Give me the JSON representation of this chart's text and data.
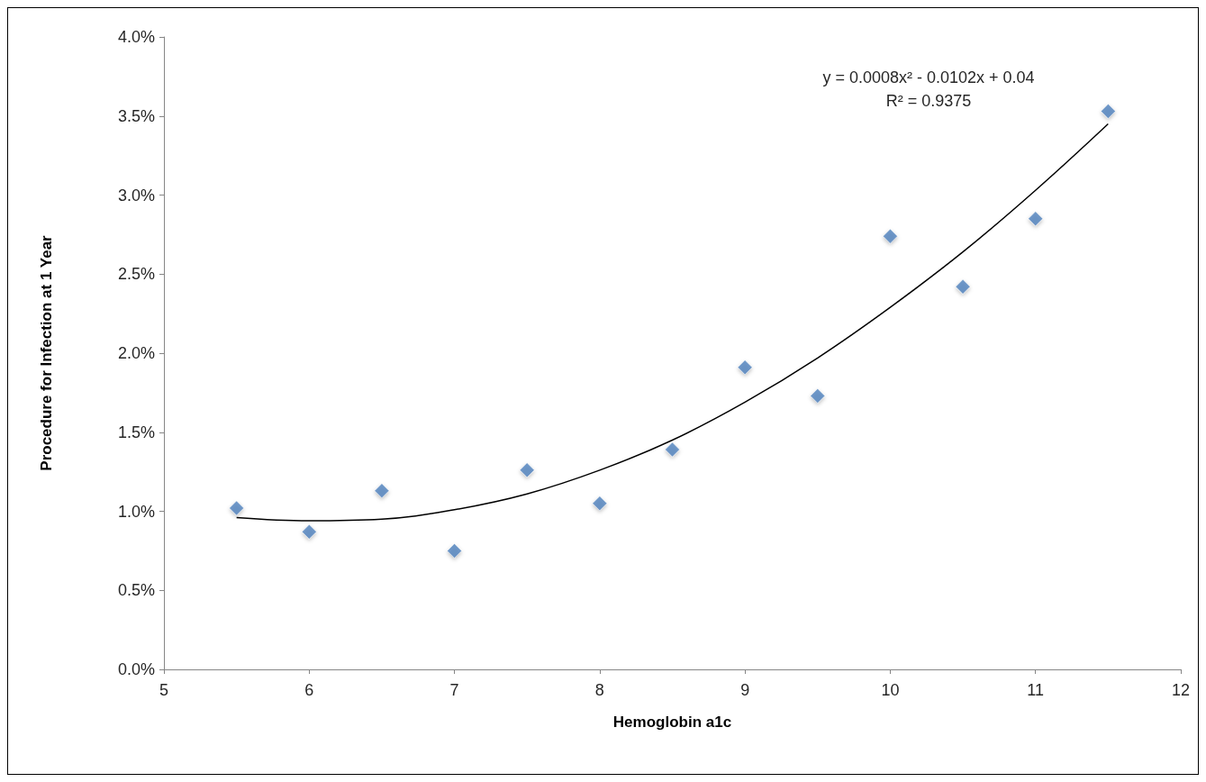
{
  "chart_data": {
    "type": "scatter",
    "xlabel": "Hemoglobin a1c",
    "ylabel": "Procedure for Infection at 1 Year",
    "xlim": [
      5,
      12
    ],
    "xticks": [
      5,
      6,
      7,
      8,
      9,
      10,
      11,
      12
    ],
    "ylim": [
      0,
      4
    ],
    "yticks": [
      {
        "value": 0,
        "label": "0.0%"
      },
      {
        "value": 0.5,
        "label": "0.5%"
      },
      {
        "value": 1,
        "label": "1.0%"
      },
      {
        "value": 1.5,
        "label": "1.5%"
      },
      {
        "value": 2,
        "label": "2.0%"
      },
      {
        "value": 2.5,
        "label": "2.5%"
      },
      {
        "value": 3,
        "label": "3.0%"
      },
      {
        "value": 3.5,
        "label": "3.5%"
      },
      {
        "value": 4,
        "label": "4.0%"
      }
    ],
    "grid": false,
    "marker": "diamond",
    "series": [
      {
        "color": "#4f81bd",
        "x": [
          5.5,
          6,
          6.5,
          7,
          7.5,
          8,
          8.5,
          9,
          9.5,
          10,
          10.5,
          11,
          11.5
        ],
        "values": [
          1.02,
          0.87,
          1.13,
          0.75,
          1.26,
          1.05,
          1.39,
          1.91,
          1.73,
          2.74,
          2.42,
          2.85,
          3.53
        ]
      },
      {
        "type": "line",
        "color": "#000000",
        "marker": "none",
        "x": [
          5.5,
          6,
          6.5,
          7,
          7.5,
          8,
          8.5,
          9,
          9.5,
          10,
          10.5,
          11,
          11.5
        ],
        "values": [
          0.96,
          0.94,
          0.95,
          1.01,
          1.11,
          1.26,
          1.45,
          1.69,
          1.97,
          2.29,
          2.64,
          3.03,
          3.45
        ]
      }
    ],
    "annotations": [
      "y = 0.0008x² - 0.0102x + 0.04",
      "R² = 0.9375"
    ]
  }
}
